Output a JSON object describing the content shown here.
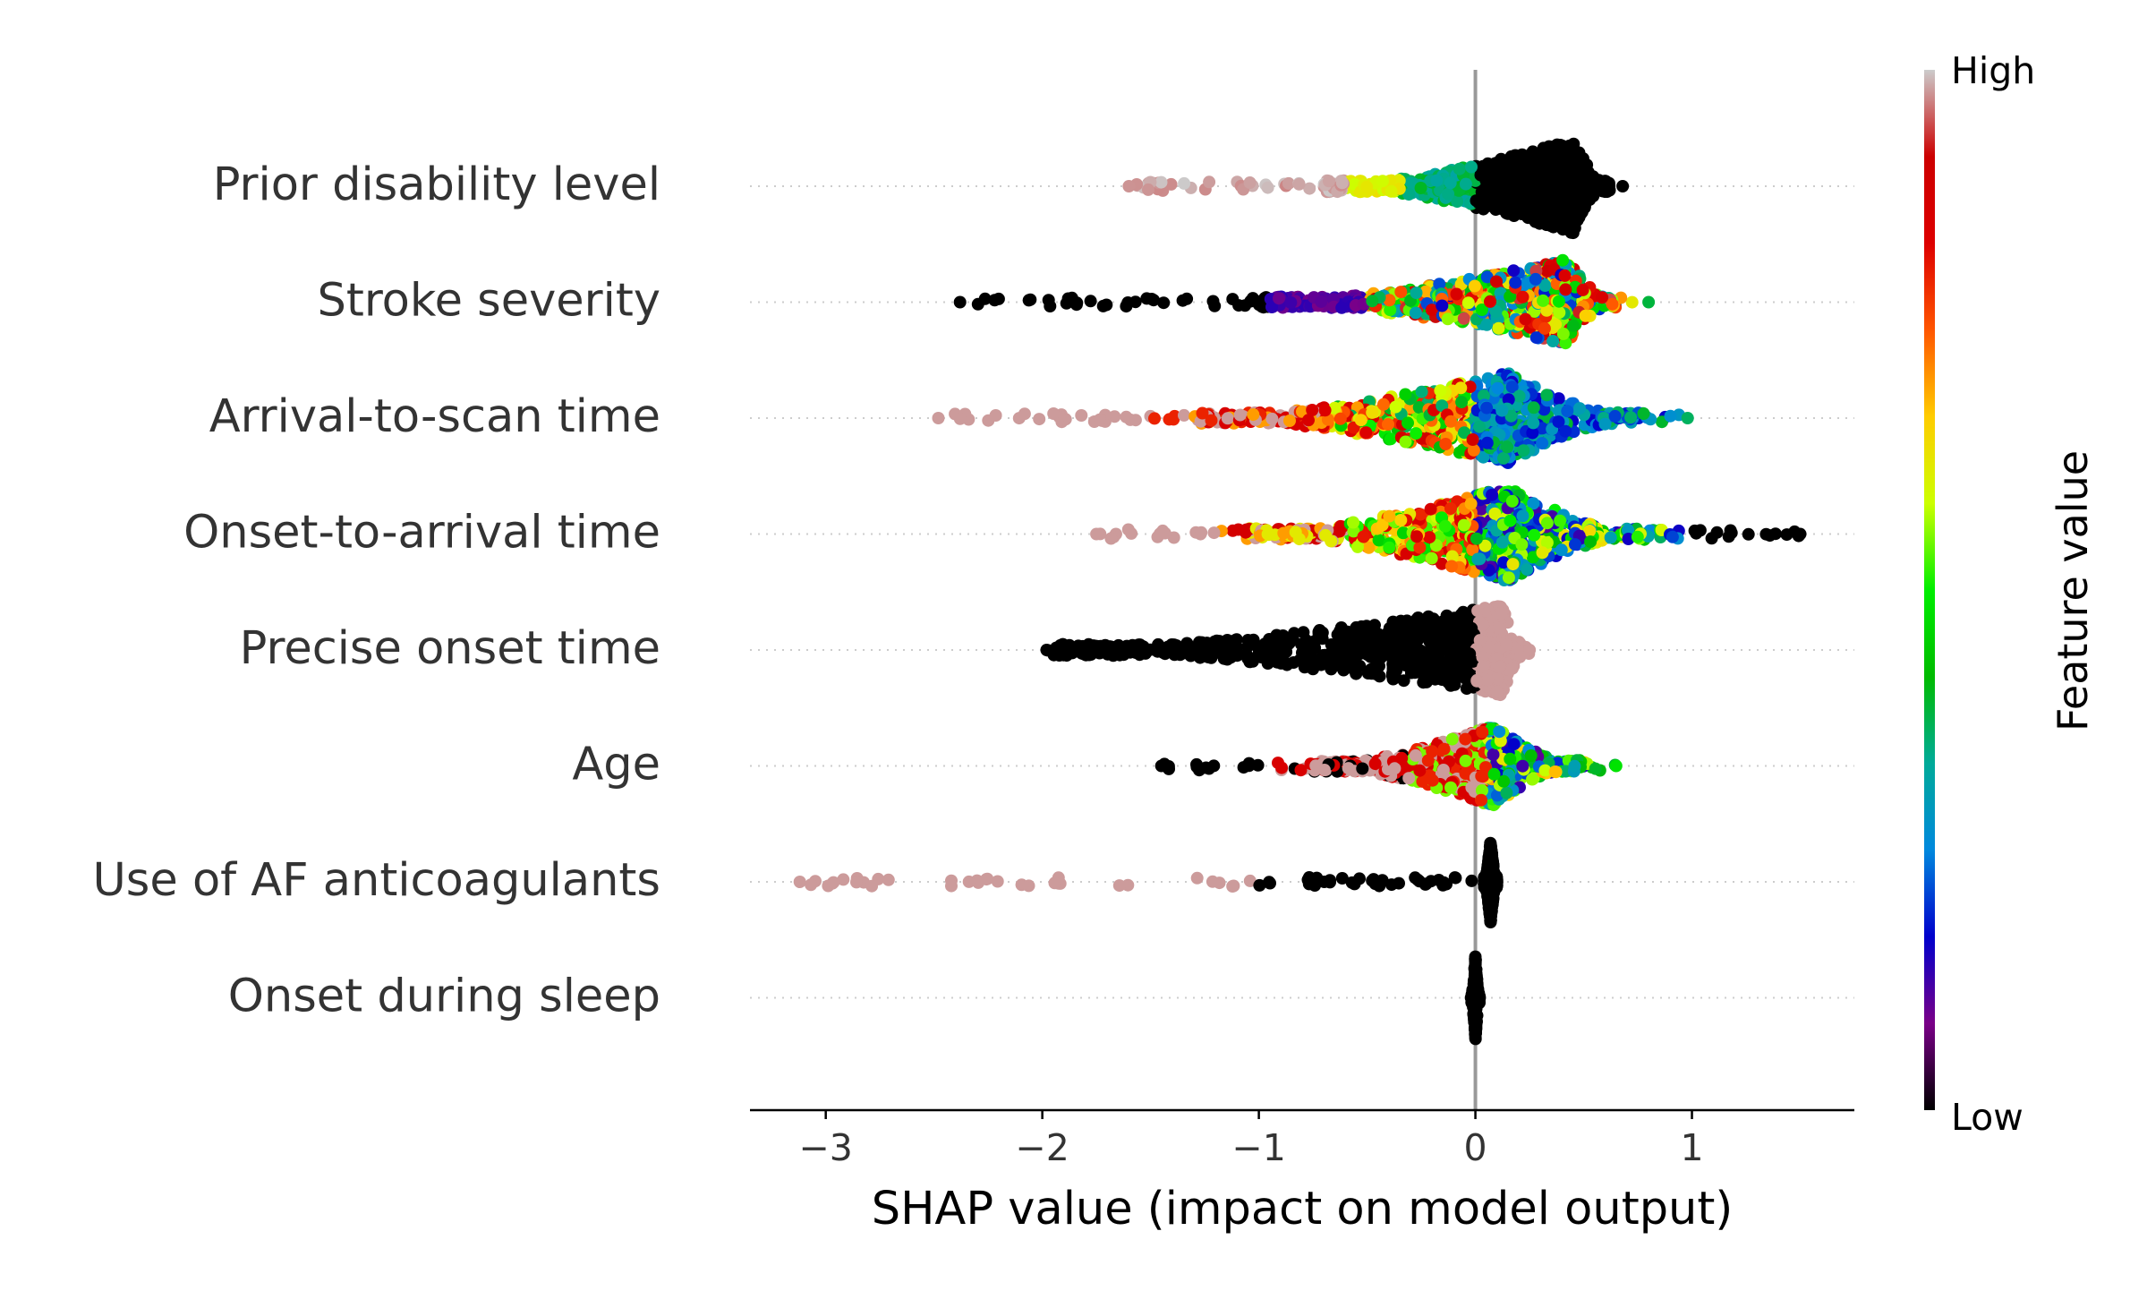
{
  "chart_data": {
    "type": "scatter",
    "subtype": "shap-beeswarm",
    "title": "",
    "xlabel": "SHAP value (impact on model output)",
    "ylabel": "",
    "xlim": [
      -3.35,
      1.75
    ],
    "xticks": [
      -3,
      -2,
      -1,
      0,
      1
    ],
    "xtick_labels": [
      "−3",
      "−2",
      "−1",
      "0",
      "1"
    ],
    "zero_line": 0,
    "grid": false,
    "features": [
      {
        "name": "Prior disability level",
        "min": -1.6,
        "max": 0.68,
        "core": [
          -0.7,
          0.62
        ],
        "dense": 0.45,
        "max_half": 0.42
      },
      {
        "name": "Stroke severity",
        "min": -2.38,
        "max": 0.8,
        "core": [
          -1.0,
          0.65
        ],
        "dense": 0.42,
        "max_half": 0.38
      },
      {
        "name": "Arrival-to-scan time",
        "min": -2.48,
        "max": 0.98,
        "core": [
          -1.3,
          0.78
        ],
        "dense": 0.15,
        "max_half": 0.4
      },
      {
        "name": "Onset-to-arrival time",
        "min": -1.75,
        "max": 1.5,
        "core": [
          -1.1,
          0.78
        ],
        "dense": 0.15,
        "max_half": 0.42
      },
      {
        "name": "Precise onset time",
        "min": -1.98,
        "max": 0.25,
        "core": [
          -1.98,
          0.25
        ],
        "dense": 0.12,
        "max_half": 0.4
      },
      {
        "name": "Age",
        "min": -1.45,
        "max": 0.65,
        "core": [
          -0.75,
          0.5
        ],
        "dense": 0.08,
        "max_half": 0.36
      },
      {
        "name": "Use of AF anticoagulants",
        "min": -3.12,
        "max": 0.1,
        "core": [
          0.04,
          0.1
        ],
        "dense": 0.07,
        "max_half": 0.36
      },
      {
        "name": "Onset during sleep",
        "min": -0.02,
        "max": 0.02,
        "core": [
          -0.02,
          0.02
        ],
        "dense": 0.0,
        "max_half": 0.38
      }
    ],
    "colorbar": {
      "label": "Feature value",
      "high_label": "High",
      "low_label": "Low",
      "colormap": "nipy_spectral",
      "stops": [
        "#000000",
        "#7a0088",
        "#0000cc",
        "#0088dd",
        "#00aa99",
        "#00bb00",
        "#00ee00",
        "#ccff00",
        "#ffcc00",
        "#ff5500",
        "#dd0000",
        "#cc0000",
        "#cccccc"
      ]
    },
    "colors": {
      "axis": "#000000",
      "zero_line": "#999999",
      "guide": "#cccccc",
      "text": "#333333"
    }
  }
}
